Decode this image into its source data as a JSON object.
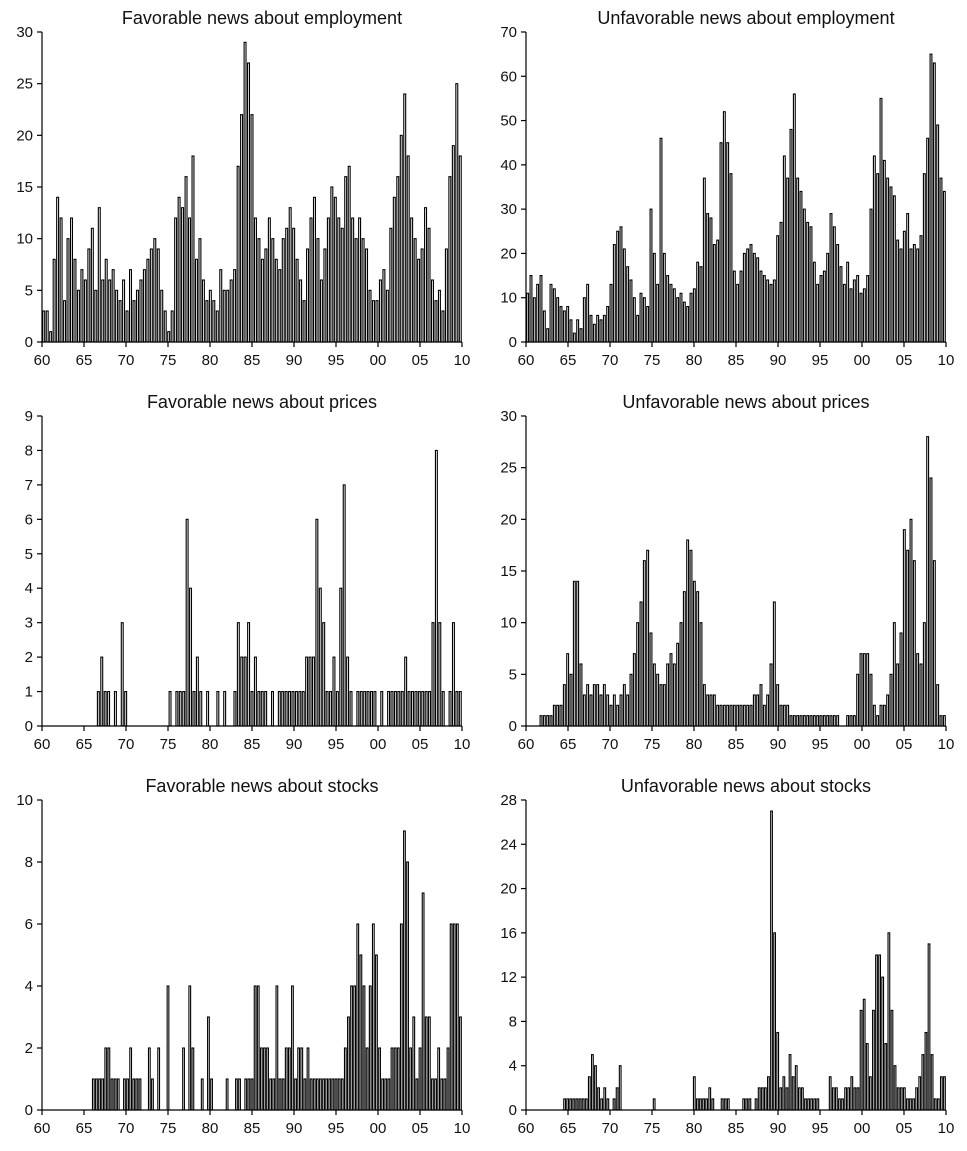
{
  "chart_data": [
    {
      "type": "bar",
      "title": "Favorable news about employment",
      "ylim": [
        0,
        30
      ],
      "yticks": [
        0,
        5,
        10,
        15,
        20,
        25,
        30
      ],
      "xtick_labels": [
        "60",
        "65",
        "70",
        "75",
        "80",
        "85",
        "90",
        "95",
        "00",
        "05",
        "10"
      ],
      "x_period": "quarterly, 1960 to 2010",
      "grid": false,
      "values": [
        3,
        3,
        1,
        8,
        14,
        12,
        4,
        10,
        12,
        8,
        5,
        7,
        6,
        9,
        11,
        5,
        13,
        6,
        8,
        6,
        7,
        5,
        4,
        6,
        3,
        7,
        4,
        5,
        6,
        7,
        8,
        9,
        10,
        9,
        5,
        3,
        1,
        3,
        12,
        14,
        13,
        16,
        12,
        18,
        8,
        10,
        6,
        4,
        5,
        4,
        3,
        7,
        5,
        5,
        6,
        7,
        17,
        22,
        29,
        27,
        22,
        12,
        10,
        8,
        9,
        12,
        10,
        8,
        7,
        10,
        11,
        13,
        11,
        8,
        6,
        4,
        9,
        12,
        14,
        10,
        6,
        9,
        12,
        15,
        14,
        12,
        11,
        16,
        17,
        12,
        10,
        12,
        10,
        9,
        5,
        4,
        4,
        6,
        7,
        5,
        11,
        14,
        16,
        20,
        24,
        18,
        12,
        10,
        8,
        9,
        13,
        11,
        6,
        4,
        5,
        3,
        9,
        16,
        19,
        25,
        18
      ]
    },
    {
      "type": "bar",
      "title": "Unfavorable news about employment",
      "ylim": [
        0,
        70
      ],
      "yticks": [
        0,
        10,
        20,
        30,
        40,
        50,
        60,
        70
      ],
      "xtick_labels": [
        "60",
        "65",
        "70",
        "75",
        "80",
        "85",
        "90",
        "95",
        "00",
        "05",
        "10"
      ],
      "x_period": "quarterly, 1960 to 2010",
      "grid": false,
      "values": [
        11,
        15,
        10,
        13,
        15,
        7,
        3,
        13,
        12,
        10,
        8,
        7,
        8,
        5,
        2,
        5,
        3,
        10,
        13,
        6,
        4,
        6,
        5,
        6,
        8,
        13,
        22,
        25,
        26,
        21,
        17,
        14,
        10,
        6,
        11,
        10,
        8,
        30,
        20,
        13,
        46,
        20,
        15,
        13,
        12,
        10,
        11,
        9,
        8,
        11,
        12,
        18,
        17,
        37,
        29,
        28,
        22,
        23,
        45,
        52,
        45,
        38,
        16,
        13,
        16,
        20,
        21,
        22,
        20,
        19,
        16,
        15,
        14,
        13,
        14,
        24,
        27,
        42,
        37,
        48,
        56,
        37,
        34,
        30,
        27,
        26,
        18,
        13,
        15,
        16,
        20,
        29,
        26,
        22,
        17,
        13,
        18,
        12,
        14,
        15,
        11,
        12,
        15,
        30,
        42,
        38,
        55,
        41,
        37,
        35,
        33,
        23,
        21,
        25,
        29,
        21,
        22,
        21,
        24,
        38,
        46,
        65,
        63,
        49,
        37,
        34
      ]
    },
    {
      "type": "bar",
      "title": "Favorable news about prices",
      "ylim": [
        0,
        9
      ],
      "yticks": [
        0,
        1,
        2,
        3,
        4,
        5,
        6,
        7,
        8,
        9
      ],
      "xtick_labels": [
        "60",
        "65",
        "70",
        "75",
        "80",
        "85",
        "90",
        "95",
        "00",
        "05",
        "10"
      ],
      "x_period": "quarterly, 1960 to 2010",
      "grid": false,
      "values": [
        0,
        0,
        0,
        0,
        0,
        0,
        0,
        0,
        0,
        0,
        0,
        0,
        0,
        0,
        0,
        0,
        1,
        2,
        1,
        1,
        0,
        1,
        0,
        3,
        1,
        0,
        0,
        0,
        0,
        0,
        0,
        0,
        0,
        0,
        0,
        0,
        0,
        1,
        0,
        1,
        1,
        1,
        6,
        4,
        1,
        2,
        1,
        0,
        1,
        0,
        0,
        1,
        0,
        1,
        0,
        0,
        1,
        3,
        2,
        2,
        3,
        1,
        2,
        1,
        1,
        1,
        0,
        1,
        0,
        1,
        1,
        1,
        1,
        1,
        1,
        1,
        1,
        2,
        2,
        2,
        6,
        4,
        3,
        1,
        1,
        2,
        1,
        4,
        7,
        2,
        1,
        0,
        1,
        1,
        1,
        1,
        1,
        1,
        0,
        1,
        0,
        1,
        1,
        1,
        1,
        1,
        2,
        1,
        1,
        1,
        1,
        1,
        1,
        1,
        3,
        8,
        3,
        1,
        0,
        1,
        3,
        1,
        1
      ]
    },
    {
      "type": "bar",
      "title": "Unfavorable news about prices",
      "ylim": [
        0,
        30
      ],
      "yticks": [
        0,
        5,
        10,
        15,
        20,
        25,
        30
      ],
      "xtick_labels": [
        "60",
        "65",
        "70",
        "75",
        "80",
        "85",
        "90",
        "95",
        "00",
        "05",
        "10"
      ],
      "x_period": "quarterly, 1960 to 2010",
      "grid": false,
      "values": [
        0,
        0,
        0,
        0,
        1,
        1,
        1,
        1,
        2,
        2,
        2,
        4,
        7,
        5,
        14,
        14,
        6,
        3,
        4,
        3,
        4,
        4,
        3,
        4,
        3,
        2,
        3,
        2,
        3,
        4,
        3,
        5,
        7,
        10,
        12,
        16,
        17,
        9,
        6,
        5,
        4,
        4,
        6,
        7,
        6,
        8,
        10,
        13,
        18,
        17,
        14,
        13,
        10,
        4,
        3,
        3,
        3,
        2,
        2,
        2,
        2,
        2,
        2,
        2,
        2,
        2,
        2,
        2,
        3,
        3,
        4,
        2,
        3,
        6,
        12,
        4,
        2,
        2,
        2,
        1,
        1,
        1,
        1,
        1,
        1,
        1,
        1,
        1,
        1,
        1,
        1,
        1,
        1,
        1,
        0,
        0,
        1,
        1,
        1,
        5,
        7,
        7,
        7,
        5,
        2,
        1,
        2,
        2,
        3,
        5,
        10,
        6,
        9,
        19,
        17,
        20,
        16,
        7,
        6,
        10,
        28,
        24,
        16,
        4,
        1,
        1
      ]
    },
    {
      "type": "bar",
      "title": "Favorable news about stocks",
      "ylim": [
        0,
        10
      ],
      "yticks": [
        0,
        2,
        4,
        6,
        8,
        10
      ],
      "xtick_labels": [
        "60",
        "65",
        "70",
        "75",
        "80",
        "85",
        "90",
        "95",
        "00",
        "05",
        "10"
      ],
      "x_period": "quarterly, 1960 to 2010",
      "grid": false,
      "values": [
        0,
        0,
        0,
        0,
        0,
        0,
        0,
        0,
        0,
        0,
        0,
        0,
        0,
        0,
        0,
        0,
        1,
        1,
        1,
        1,
        2,
        2,
        1,
        1,
        1,
        0,
        1,
        1,
        2,
        1,
        1,
        1,
        0,
        0,
        2,
        1,
        0,
        2,
        0,
        0,
        4,
        0,
        0,
        0,
        0,
        2,
        0,
        4,
        2,
        0,
        0,
        1,
        0,
        3,
        1,
        0,
        0,
        0,
        0,
        1,
        0,
        0,
        1,
        1,
        0,
        1,
        1,
        1,
        4,
        4,
        2,
        2,
        2,
        1,
        1,
        4,
        1,
        1,
        2,
        2,
        4,
        1,
        2,
        2,
        1,
        2,
        1,
        1,
        1,
        1,
        1,
        1,
        1,
        1,
        1,
        1,
        1,
        2,
        3,
        4,
        4,
        6,
        5,
        4,
        2,
        4,
        6,
        5,
        2,
        1,
        1,
        1,
        2,
        2,
        2,
        6,
        9,
        8,
        2,
        3,
        1,
        2,
        7,
        3,
        3,
        1,
        1,
        2,
        1,
        1,
        2,
        6,
        6,
        6,
        3
      ]
    },
    {
      "type": "bar",
      "title": "Unfavorable news about stocks",
      "ylim": [
        0,
        28
      ],
      "yticks": [
        0,
        4,
        8,
        12,
        16,
        20,
        24,
        28
      ],
      "xtick_labels": [
        "60",
        "65",
        "70",
        "75",
        "80",
        "85",
        "90",
        "95",
        "00",
        "05",
        "10"
      ],
      "x_period": "quarterly, 1960 to 2010",
      "grid": false,
      "values": [
        0,
        0,
        0,
        0,
        0,
        0,
        0,
        0,
        0,
        0,
        0,
        0,
        1,
        1,
        1,
        1,
        1,
        1,
        1,
        1,
        3,
        5,
        4,
        2,
        1,
        2,
        1,
        0,
        1,
        2,
        4,
        0,
        0,
        0,
        0,
        0,
        0,
        0,
        0,
        0,
        0,
        1,
        0,
        0,
        0,
        0,
        0,
        0,
        0,
        0,
        0,
        0,
        0,
        0,
        3,
        1,
        1,
        1,
        1,
        2,
        1,
        0,
        0,
        1,
        1,
        1,
        0,
        0,
        0,
        0,
        1,
        1,
        1,
        0,
        1,
        2,
        2,
        2,
        3,
        27,
        16,
        7,
        2,
        3,
        2,
        5,
        3,
        4,
        2,
        2,
        1,
        1,
        1,
        1,
        1,
        0,
        0,
        0,
        3,
        2,
        2,
        1,
        1,
        2,
        2,
        3,
        2,
        2,
        9,
        10,
        6,
        3,
        9,
        14,
        14,
        12,
        6,
        16,
        9,
        4,
        2,
        2,
        2,
        1,
        1,
        1,
        2,
        3,
        5,
        7,
        15,
        5,
        1,
        1,
        3,
        3
      ]
    }
  ]
}
